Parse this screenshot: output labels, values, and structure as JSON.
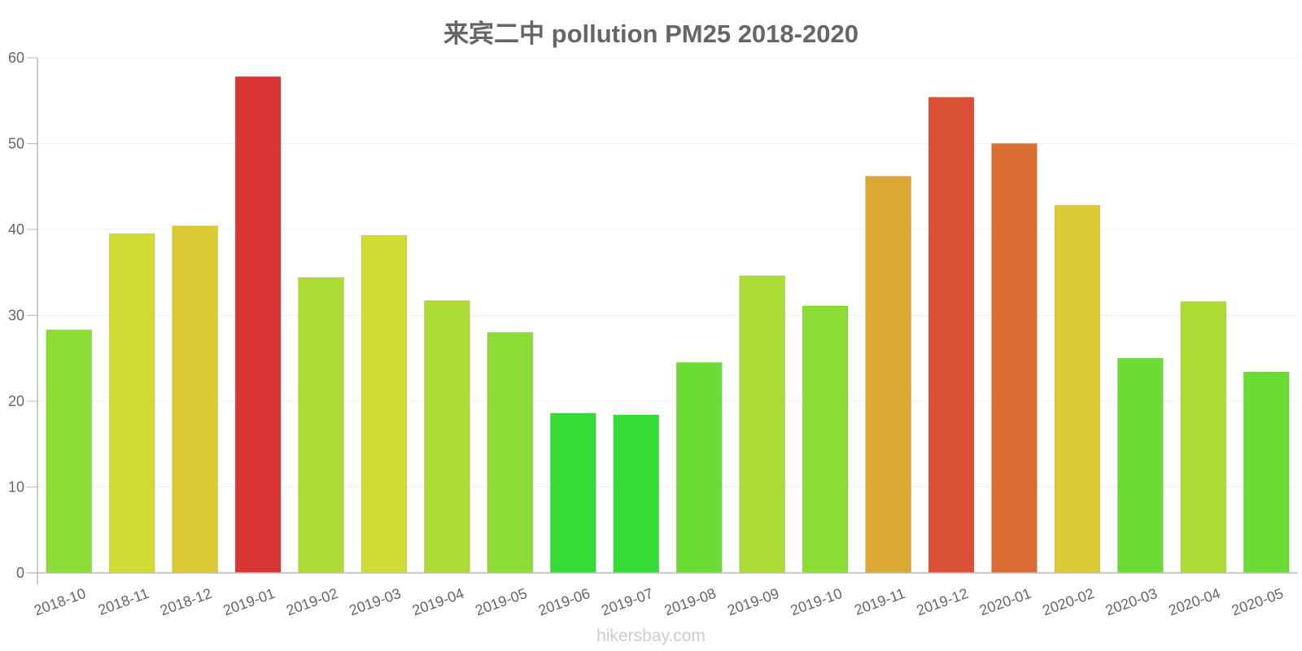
{
  "header": {
    "title": "来宾二中 pollution PM25 2018-2020"
  },
  "footer": {
    "watermark": "hikersbay.com"
  },
  "chart_data": {
    "type": "bar",
    "title": "来宾二中 pollution PM25 2018-2020",
    "xlabel": "",
    "ylabel": "",
    "ylim": [
      0,
      60
    ],
    "yticks": [
      0,
      10,
      20,
      30,
      40,
      50,
      60
    ],
    "grid": true,
    "legend": null,
    "categories": [
      "2018-10",
      "2018-11",
      "2018-12",
      "2019-01",
      "2019-02",
      "2019-03",
      "2019-04",
      "2019-05",
      "2019-06",
      "2019-07",
      "2019-08",
      "2019-09",
      "2019-10",
      "2019-11",
      "2019-12",
      "2020-01",
      "2020-02",
      "2020-03",
      "2020-04",
      "2020-05"
    ],
    "values": [
      28.3,
      39.5,
      40.4,
      57.8,
      34.4,
      39.3,
      31.7,
      28.0,
      18.6,
      18.4,
      24.5,
      34.6,
      31.1,
      46.2,
      55.4,
      50.0,
      42.8,
      25.0,
      31.6,
      23.4
    ],
    "colors": [
      "#8bdc35",
      "#cfdc33",
      "#dbca33",
      "#da3535",
      "#addc35",
      "#cfdc33",
      "#addc35",
      "#8bdc35",
      "#35dc35",
      "#35dc35",
      "#6bdc35",
      "#addc35",
      "#8bdc35",
      "#dba833",
      "#da5035",
      "#db6e33",
      "#dbca33",
      "#6bdc35",
      "#addc35",
      "#6bdc35"
    ]
  }
}
